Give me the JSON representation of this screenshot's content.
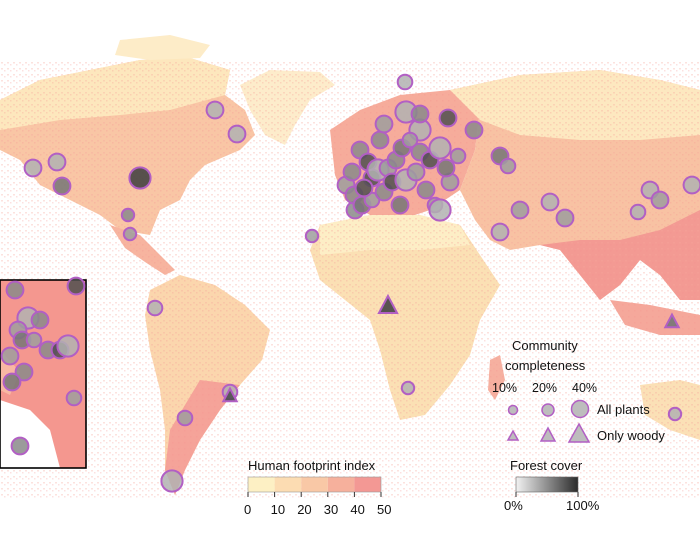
{
  "colors": {
    "background": "#ffffff",
    "land_low": "#fde9bd",
    "land_mid": "#f9c9a6",
    "land_high": "#f4918f",
    "marker_stroke": "#b25fc4",
    "marker_fill": "#bdbdbd",
    "inset_border": "#000000"
  },
  "completeness_legend": {
    "title_line1": "Community",
    "title_line2": "completeness",
    "levels": [
      "10%",
      "20%",
      "40%"
    ],
    "row_all_plants": "All plants",
    "row_only_woody": "Only woody"
  },
  "footprint_legend": {
    "title": "Human footprint index",
    "ticks": [
      "0",
      "10",
      "20",
      "30",
      "40",
      "50"
    ],
    "colors": [
      "#fdf0c4",
      "#fcdcb2",
      "#f9c8a6",
      "#f6b09c",
      "#f39894"
    ]
  },
  "forest_legend": {
    "title": "Forest cover",
    "min_label": "0%",
    "max_label": "100%",
    "color_min": "#f2f2f2",
    "color_max": "#2b2b2b"
  },
  "sites": [
    {
      "shape": "circle",
      "region": "north-america",
      "completeness": 0.2,
      "forest": 0.3
    },
    {
      "shape": "circle",
      "region": "north-america",
      "completeness": 0.2,
      "forest": 0.3
    },
    {
      "shape": "circle",
      "region": "north-america",
      "completeness": 0.3,
      "forest": 0.9
    },
    {
      "shape": "circle",
      "region": "north-america",
      "completeness": 0.2,
      "forest": 0.6
    },
    {
      "shape": "circle",
      "region": "north-america",
      "completeness": 0.1,
      "forest": 0.5
    },
    {
      "shape": "circle",
      "region": "north-america",
      "completeness": 0.1,
      "forest": 0.4
    },
    {
      "shape": "circle",
      "region": "greenland",
      "completeness": 0.2,
      "forest": 0.3
    },
    {
      "shape": "circle",
      "region": "greenland",
      "completeness": 0.2,
      "forest": 0.3
    },
    {
      "shape": "circle",
      "region": "arctic",
      "completeness": 0.15,
      "forest": 0.3
    },
    {
      "shape": "circle",
      "region": "europe",
      "completeness": 0.2,
      "forest": 0.5
    },
    {
      "shape": "circle",
      "region": "europe",
      "completeness": 0.2,
      "forest": 0.8
    },
    {
      "shape": "circle",
      "region": "europe",
      "completeness": 0.3,
      "forest": 0.3
    },
    {
      "shape": "circle",
      "region": "europe",
      "completeness": 0.2,
      "forest": 0.4
    },
    {
      "shape": "circle",
      "region": "europe",
      "completeness": 0.2,
      "forest": 0.5
    },
    {
      "shape": "circle",
      "region": "europe",
      "completeness": 0.2,
      "forest": 0.6
    },
    {
      "shape": "circle",
      "region": "europe",
      "completeness": 0.15,
      "forest": 0.4
    },
    {
      "shape": "circle",
      "region": "asia",
      "completeness": 0.2,
      "forest": 0.4
    },
    {
      "shape": "circle",
      "region": "asia",
      "completeness": 0.2,
      "forest": 0.3
    },
    {
      "shape": "circle",
      "region": "asia",
      "completeness": 0.2,
      "forest": 0.4
    },
    {
      "shape": "circle",
      "region": "asia",
      "completeness": 0.2,
      "forest": 0.3
    },
    {
      "shape": "circle",
      "region": "asia",
      "completeness": 0.15,
      "forest": 0.3
    },
    {
      "shape": "circle",
      "region": "asia",
      "completeness": 0.2,
      "forest": 0.4
    },
    {
      "shape": "circle",
      "region": "asia",
      "completeness": 0.2,
      "forest": 0.3
    },
    {
      "shape": "circle",
      "region": "africa",
      "completeness": 0.1,
      "forest": 0.4
    },
    {
      "shape": "circle",
      "region": "africa",
      "completeness": 0.2,
      "forest": 0.3
    },
    {
      "shape": "circle",
      "region": "africa",
      "completeness": 0.1,
      "forest": 0.3
    },
    {
      "shape": "triangle",
      "region": "africa",
      "completeness": 0.2,
      "forest": 0.85
    },
    {
      "shape": "circle",
      "region": "south-america",
      "completeness": 0.15,
      "forest": 0.3
    },
    {
      "shape": "circle",
      "region": "south-america",
      "completeness": 0.15,
      "forest": 0.4
    },
    {
      "shape": "circle",
      "region": "south-america",
      "completeness": 0.15,
      "forest": 0.3
    },
    {
      "shape": "circle",
      "region": "south-america",
      "completeness": 0.3,
      "forest": 0.3
    },
    {
      "shape": "triangle",
      "region": "south-america",
      "completeness": 0.1,
      "forest": 0.8
    },
    {
      "shape": "circle",
      "region": "oceania",
      "completeness": 0.1,
      "forest": 0.3
    },
    {
      "shape": "triangle",
      "region": "oceania",
      "completeness": 0.1,
      "forest": 0.6
    }
  ]
}
